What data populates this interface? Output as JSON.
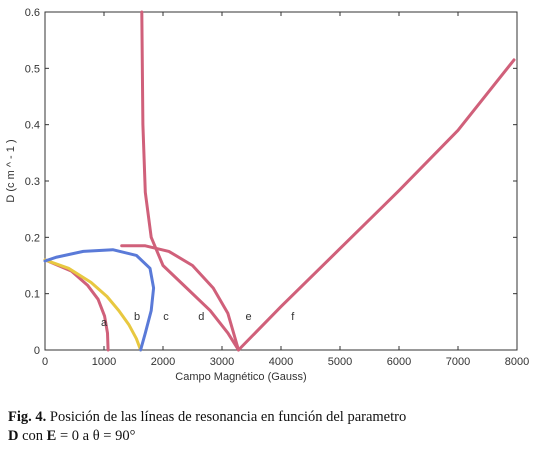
{
  "caption": {
    "line1_bold": "Fig. 4.",
    "line1_text": " Posición de las líneas de resonancia en función del parametro",
    "line2_bold_d": "D",
    "line2_mid": " con ",
    "line2_bold_e": "E",
    "line2_rest": " = 0 a θ = 90°"
  },
  "chart_data": {
    "type": "line",
    "title": "",
    "xlabel": "Campo Magnético (Gauss)",
    "ylabel": "D  (c m ^ - 1 )",
    "xlim": [
      0,
      8000
    ],
    "ylim": [
      0,
      0.6
    ],
    "xticks": [
      "0",
      "1000",
      "2000",
      "3000",
      "4000",
      "5000",
      "6000",
      "7000",
      "8000"
    ],
    "yticks": [
      "0",
      "0.1",
      "0.2",
      "0.3",
      "0.4",
      "0.5",
      "0.6"
    ],
    "grid": false,
    "series": [
      {
        "name": "a",
        "color": "#d0607a",
        "points": [
          [
            1070,
            0
          ],
          [
            1060,
            0.03
          ],
          [
            1010,
            0.06
          ],
          [
            900,
            0.09
          ],
          [
            720,
            0.115
          ],
          [
            450,
            0.14
          ],
          [
            0,
            0.16
          ]
        ]
      },
      {
        "name": "b",
        "color": "#e8c840",
        "points": [
          [
            1620,
            0
          ],
          [
            1550,
            0.02
          ],
          [
            1420,
            0.045
          ],
          [
            1250,
            0.07
          ],
          [
            1050,
            0.095
          ],
          [
            780,
            0.12
          ],
          [
            400,
            0.145
          ],
          [
            0,
            0.16
          ]
        ]
      },
      {
        "name": "c",
        "color": "#5a7ad8",
        "points": [
          [
            1620,
            0
          ],
          [
            1700,
            0.03
          ],
          [
            1800,
            0.07
          ],
          [
            1840,
            0.11
          ],
          [
            1780,
            0.145
          ],
          [
            1550,
            0.168
          ],
          [
            1150,
            0.178
          ],
          [
            650,
            0.175
          ],
          [
            200,
            0.165
          ],
          [
            0,
            0.158
          ]
        ]
      },
      {
        "name": "d",
        "color": "#d0607a",
        "points": [
          [
            3280,
            0
          ],
          [
            3100,
            0.03
          ],
          [
            2800,
            0.07
          ],
          [
            2400,
            0.11
          ],
          [
            2000,
            0.15
          ],
          [
            1800,
            0.2
          ],
          [
            1700,
            0.28
          ],
          [
            1660,
            0.4
          ],
          [
            1640,
            0.6
          ]
        ]
      },
      {
        "name": "e",
        "color": "#d0607a",
        "points": [
          [
            1300,
            0.185
          ],
          [
            1700,
            0.185
          ],
          [
            2100,
            0.175
          ],
          [
            2500,
            0.15
          ],
          [
            2850,
            0.11
          ],
          [
            3100,
            0.065
          ],
          [
            3280,
            0
          ]
        ]
      },
      {
        "name": "f",
        "color": "#d0607a",
        "points": [
          [
            3280,
            0
          ],
          [
            4000,
            0.077
          ],
          [
            5000,
            0.18
          ],
          [
            6000,
            0.283
          ],
          [
            7000,
            0.39
          ],
          [
            7950,
            0.515
          ]
        ]
      }
    ],
    "annotations": [
      {
        "text": "a",
        "x": 1000,
        "y": 0.05
      },
      {
        "text": "b",
        "x": 1560,
        "y": 0.06
      },
      {
        "text": "c",
        "x": 2050,
        "y": 0.06
      },
      {
        "text": "d",
        "x": 2650,
        "y": 0.06
      },
      {
        "text": "e",
        "x": 3450,
        "y": 0.06
      },
      {
        "text": "f",
        "x": 4200,
        "y": 0.06
      }
    ]
  }
}
